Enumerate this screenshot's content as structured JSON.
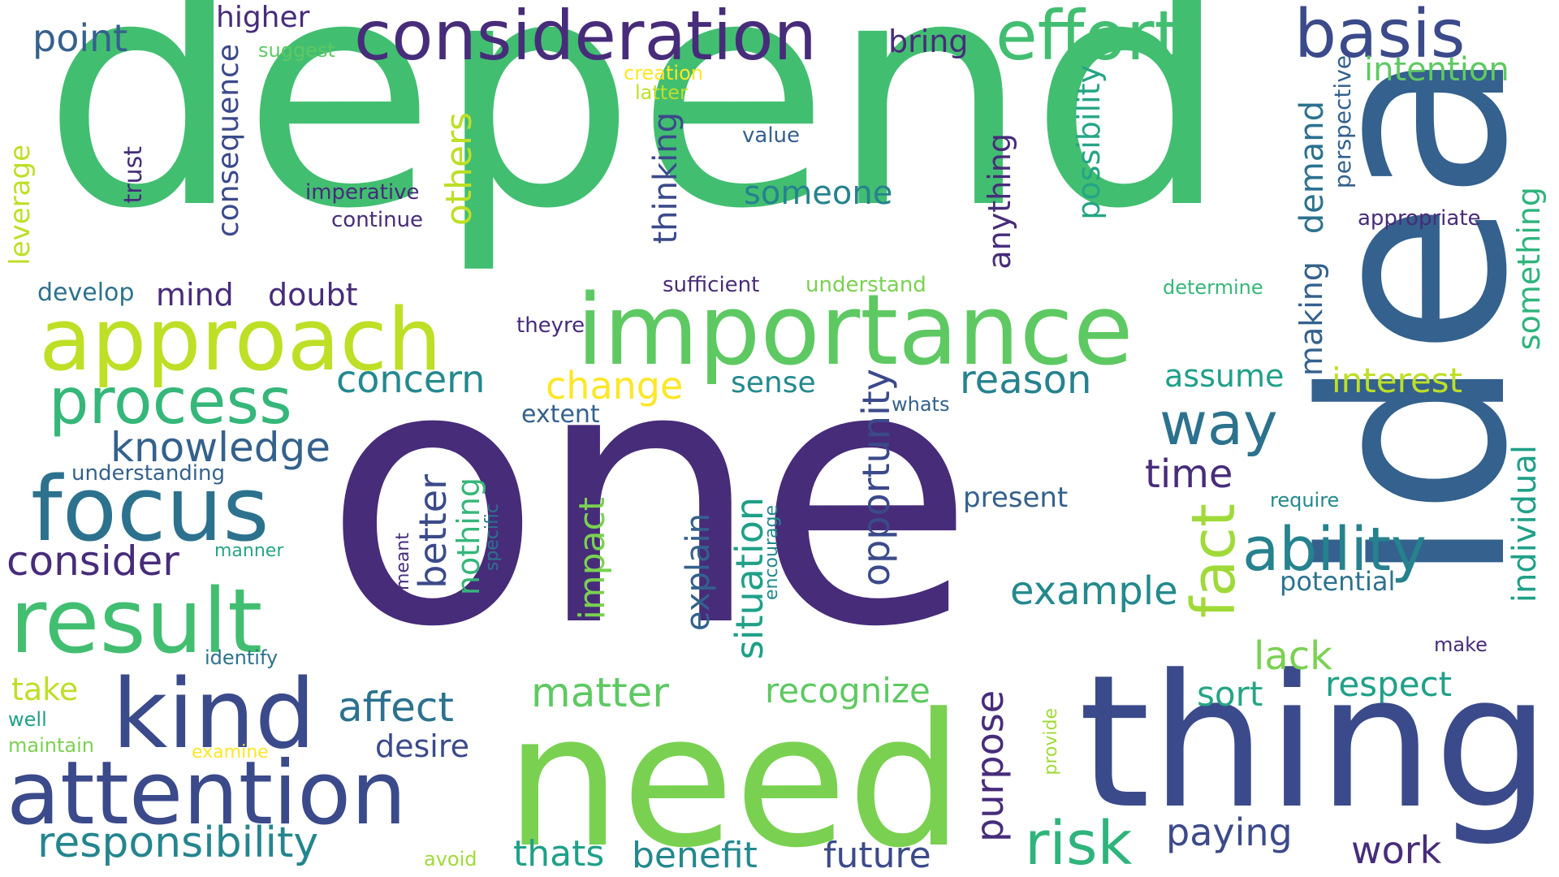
{
  "palette": {
    "purple": "#472c7a",
    "indigo": "#3b4a8a",
    "slate": "#34618d",
    "teal_blue": "#2c728e",
    "teal": "#23898e",
    "green_teal": "#1fa088",
    "green": "#42be71",
    "light_green": "#7ad151",
    "lime": "#bddf26",
    "yellow": "#fde725"
  },
  "words": {
    "depend": "depend",
    "one": "one",
    "idea": "idea",
    "thing": "thing",
    "need": "need",
    "importance": "importance",
    "approach": "approach",
    "consideration": "consideration",
    "effort": "effort",
    "basis": "basis",
    "focus": "focus",
    "result": "result",
    "kind": "kind",
    "attention": "attention",
    "process": "process",
    "ability": "ability",
    "way": "way",
    "fact": "fact",
    "risk": "risk",
    "responsibility": "responsibility",
    "knowledge": "knowledge",
    "consider": "consider",
    "matter": "matter",
    "affect": "affect",
    "concern": "concern",
    "change": "change",
    "reason": "reason",
    "example": "example",
    "opportunity": "opportunity",
    "situation": "situation",
    "purpose": "purpose",
    "recognize": "recognize",
    "impact": "impact",
    "better": "better",
    "explain": "explain",
    "time": "time",
    "paying": "paying",
    "work": "work",
    "benefit": "benefit",
    "future": "future",
    "thats": "thats",
    "lack": "lack",
    "respect": "respect",
    "sort": "sort",
    "individual": "individual",
    "interest": "interest",
    "something": "something",
    "making": "making",
    "demand": "demand",
    "possibility": "possibility",
    "anything": "anything",
    "thinking": "thinking",
    "others": "others",
    "someone": "someone",
    "sense": "sense",
    "consequence": "consequence",
    "higher": "higher",
    "bring": "bring",
    "point": "point",
    "suggest": "suggest",
    "creation": "creation",
    "latter": "latter",
    "value": "value",
    "imperative": "imperative",
    "continue": "continue",
    "trust": "trust",
    "leverage": "leverage",
    "develop": "develop",
    "mind": "mind",
    "doubt": "doubt",
    "sufficient": "sufficient",
    "understand": "understand",
    "theyre": "theyre",
    "extent": "extent",
    "whats": "whats",
    "understanding": "understanding",
    "nothing": "nothing",
    "specific": "specific",
    "meant": "meant",
    "encourage": "encourage",
    "present": "present",
    "assume": "assume",
    "intention": "intention",
    "perspective": "perspective",
    "appropriate": "appropriate",
    "determine": "determine",
    "require": "require",
    "potential": "potential",
    "make": "make",
    "manner": "manner",
    "identify": "identify",
    "take": "take",
    "well": "well",
    "maintain": "maintain",
    "examine": "examine",
    "desire": "desire",
    "provide": "provide",
    "avoid": "avoid"
  }
}
